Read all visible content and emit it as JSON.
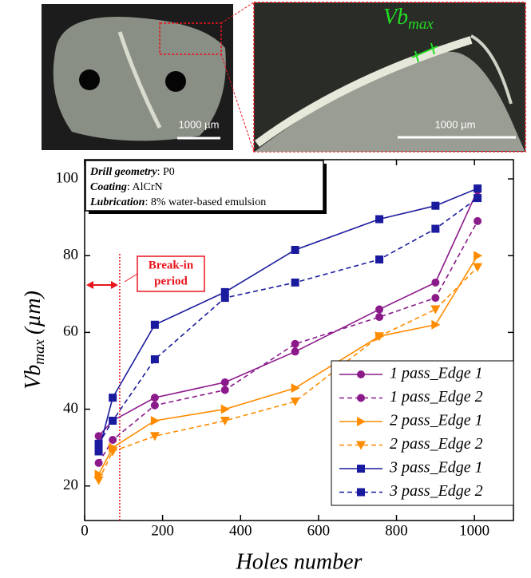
{
  "images": {
    "left_scale": "1000 µm",
    "right_scale": "1000 µm",
    "right_label": {
      "main": "Vb",
      "sub": "max"
    }
  },
  "chart_data": {
    "type": "line",
    "xlabel": "Holes number",
    "ylabel": {
      "main": "Vb",
      "sub": "max",
      "unit": "(µm)"
    },
    "info": [
      {
        "key": "Drill geometry",
        "text": ": P0"
      },
      {
        "key": "Coating",
        "text": ": AlCrN"
      },
      {
        "key": "Lubrication",
        "text": ": 8% water-based emulsion"
      }
    ],
    "break_in": {
      "x": 90,
      "label": [
        "Break-in",
        "period"
      ],
      "color": "#e8141c"
    },
    "x": [
      36,
      72,
      180,
      360,
      540,
      756,
      900,
      1008
    ],
    "series": [
      {
        "name": "1 pass_Edge 1",
        "color": "#8b1a8b",
        "marker": "circle",
        "dashed": false,
        "values": [
          33,
          37,
          43,
          47,
          55,
          66,
          73,
          97
        ]
      },
      {
        "name": "1 pass_Edge 2",
        "color": "#8b1a8b",
        "marker": "circle",
        "dashed": true,
        "values": [
          26,
          32,
          41,
          45,
          57,
          64,
          69,
          89
        ]
      },
      {
        "name": "2 pass_Edge 1",
        "color": "#ff8c00",
        "marker": "triangle-right",
        "dashed": false,
        "values": [
          23,
          30,
          37,
          40,
          45.5,
          59,
          62,
          80
        ]
      },
      {
        "name": "2 pass_Edge 2",
        "color": "#ff8c00",
        "marker": "triangle-down",
        "dashed": true,
        "values": [
          21.5,
          29,
          33,
          37,
          42,
          59,
          66,
          77
        ]
      },
      {
        "name": "3 pass_Edge 1",
        "color": "#1a1a9e",
        "marker": "square",
        "dashed": false,
        "values": [
          29,
          43,
          62,
          70.5,
          81.5,
          89.5,
          93,
          97.5
        ]
      },
      {
        "name": "3 pass_Edge 2",
        "color": "#1a1a9e",
        "marker": "square",
        "dashed": true,
        "values": [
          31,
          37,
          53,
          69,
          73,
          79,
          87,
          95
        ]
      }
    ],
    "xlim": [
      0,
      1100
    ],
    "xticks": [
      0,
      200,
      400,
      600,
      800,
      1000
    ],
    "ylim": [
      11,
      105
    ],
    "yticks": [
      20,
      40,
      60,
      80,
      100
    ],
    "legend": "lower right"
  }
}
